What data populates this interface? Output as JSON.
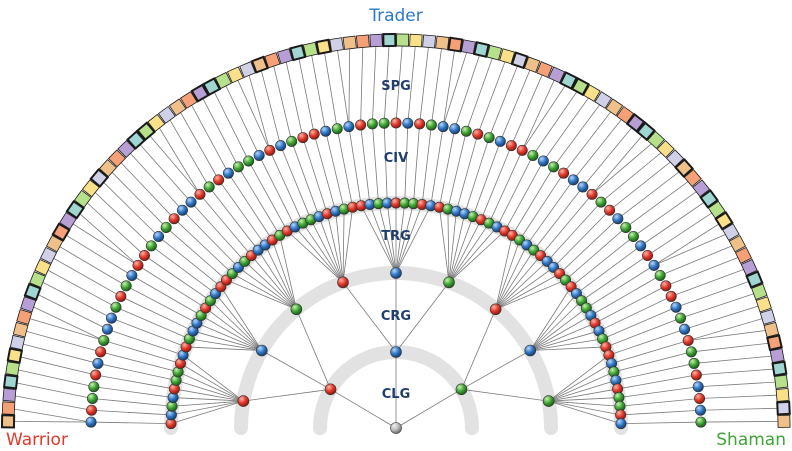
{
  "labels": {
    "top": "Trader",
    "left": "Warrior",
    "right": "Shaman"
  },
  "levels": {
    "clg": "CLG",
    "crg": "CRG",
    "trg": "TRG",
    "civ": "CIV",
    "spg": "SPG"
  },
  "colors": {
    "warrior": "#e0392b",
    "shaman": "#3fa535",
    "trader": "#2f78c4",
    "level_text": "#1f3e6e",
    "band": "#e2e2e2",
    "line": "#7a7a7a",
    "root": "#b4b4b4",
    "square_palette": [
      "#f0c08a",
      "#f6a078",
      "#b79fd6",
      "#9fd6d2",
      "#b7e08a",
      "#fbe08a",
      "#d0d0e6"
    ]
  },
  "node_colors": {
    "crg": [
      "red",
      "blue",
      "green"
    ],
    "trg": [
      "red",
      "blue",
      "green",
      "red",
      "blue",
      "green",
      "red",
      "blue",
      "green"
    ],
    "civ": [
      "red",
      "blue",
      "green",
      "blue",
      "red",
      "green",
      "green",
      "red",
      "blue",
      "red",
      "green",
      "blue",
      "blue",
      "green",
      "red",
      "green",
      "blue",
      "red",
      "red",
      "green",
      "blue",
      "green",
      "red",
      "blue",
      "blue",
      "red",
      "green",
      "red",
      "blue",
      "green",
      "green",
      "blue",
      "red",
      "blue",
      "green",
      "red",
      "red",
      "blue",
      "green",
      "blue",
      "red",
      "green",
      "green",
      "red",
      "blue",
      "red",
      "green",
      "blue",
      "blue",
      "green",
      "red",
      "green",
      "blue",
      "red",
      "red",
      "green",
      "blue",
      "green",
      "red",
      "blue",
      "blue",
      "red",
      "green",
      "red",
      "blue",
      "green",
      "green",
      "blue",
      "red",
      "blue",
      "green",
      "red",
      "red",
      "blue",
      "green",
      "blue",
      "red",
      "green",
      "green",
      "red",
      "blue"
    ]
  }
}
